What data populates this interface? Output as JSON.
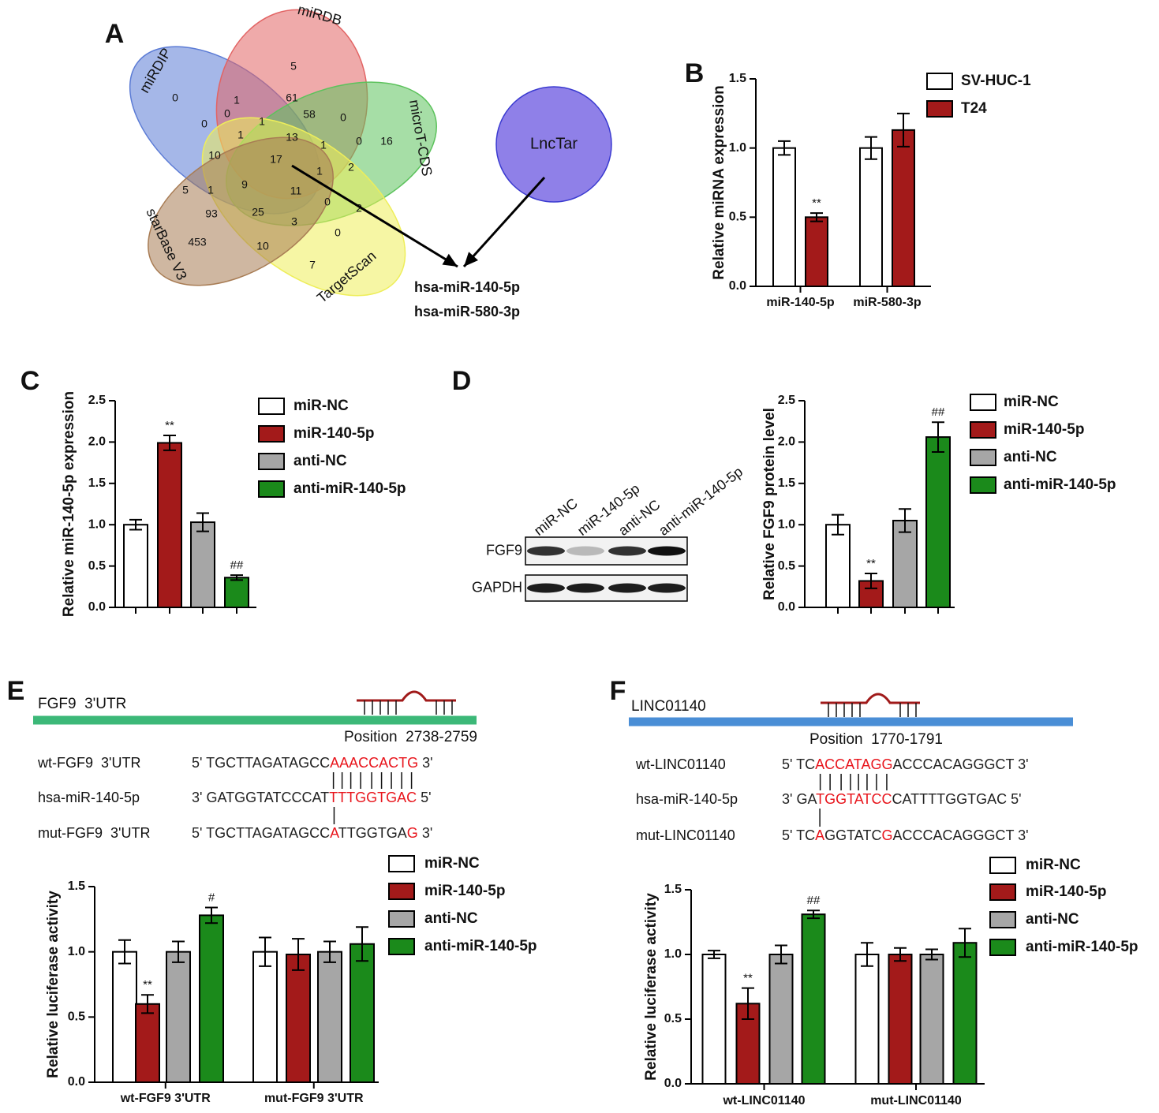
{
  "venn": {
    "panel": "A",
    "sets": [
      {
        "name": "miRDIP",
        "color": "#5b7bd5"
      },
      {
        "name": "miRDB",
        "color": "#e26464"
      },
      {
        "name": "microT-CDS",
        "color": "#5cc25c"
      },
      {
        "name": "starBase V3",
        "color": "#eeee5a"
      },
      {
        "name": "TargetScan",
        "color": "#a87c54"
      }
    ],
    "regions": [
      5,
      61,
      1,
      58,
      0,
      0,
      1,
      13,
      16,
      0,
      0,
      1,
      0,
      1,
      17,
      1,
      10,
      2,
      5,
      9,
      11,
      1,
      2,
      0,
      93,
      25,
      3,
      0,
      453,
      10,
      7
    ]
  },
  "lnctar": {
    "name": "LncTar",
    "color": "#8f80e8"
  },
  "candidates": [
    "hsa-miR-140-5p",
    "hsa-miR-580-3p"
  ],
  "blot": {
    "lanes": [
      "miR-NC",
      "miR-140-5p",
      "anti-NC",
      "anti-miR-140-5p"
    ],
    "rows": [
      "FGF9",
      "GAPDH"
    ]
  },
  "sequences": [
    {
      "panel": "E",
      "gene": "FGF9  3'UTR",
      "position": "Position  2738-2759",
      "color": "#3cb878",
      "rows": [
        {
          "label": "wt-FGF9  3'UTR",
          "segments": [
            {
              "text": "5' TGCTTAGATAGCC",
              "color": "#222222"
            },
            {
              "text": "AAACCACTG",
              "color": "#e8141b"
            },
            {
              "text": " 3'",
              "color": "#222222"
            }
          ]
        },
        {
          "label": "hsa-miR-140-5p",
          "segments": [
            {
              "text": "3' GATGGTATCCCAT",
              "color": "#222222"
            },
            {
              "text": "TTTGGTGAC",
              "color": "#e8141b"
            },
            {
              "text": " 5'",
              "color": "#222222"
            }
          ]
        },
        {
          "label": "mut-FGF9  3'UTR",
          "segments": [
            {
              "text": "5' TGCTTAGATAGCC",
              "color": "#222222"
            },
            {
              "text": "A",
              "color": "#e8141b"
            },
            {
              "text": "TTGGTGA",
              "color": "#222222"
            },
            {
              "text": "G",
              "color": "#e8141b"
            },
            {
              "text": " 3'",
              "color": "#222222"
            }
          ]
        }
      ]
    },
    {
      "panel": "F",
      "gene": "LINC01140",
      "position": "Position  1770-1791",
      "color": "#4a8ed6",
      "rows": [
        {
          "label": "wt-LINC01140",
          "segments": [
            {
              "text": "5' TC",
              "color": "#222222"
            },
            {
              "text": "ACCATAGG",
              "color": "#e8141b"
            },
            {
              "text": "ACCCACAGGGCT 3'",
              "color": "#222222"
            }
          ]
        },
        {
          "label": "hsa-miR-140-5p",
          "segments": [
            {
              "text": "3' GA",
              "color": "#222222"
            },
            {
              "text": "TGGTATCC",
              "color": "#e8141b"
            },
            {
              "text": "CATTTTGGTGAC 5'",
              "color": "#222222"
            }
          ]
        },
        {
          "label": "mut-LINC01140",
          "segments": [
            {
              "text": "5' TC",
              "color": "#222222"
            },
            {
              "text": "A",
              "color": "#e8141b"
            },
            {
              "text": "GGTATC",
              "color": "#222222"
            },
            {
              "text": "G",
              "color": "#e8141b"
            },
            {
              "text": "ACCCACAGGGCT 3'",
              "color": "#222222"
            }
          ]
        }
      ]
    }
  ],
  "chart_data": [
    {
      "type": "bar",
      "panel": "B",
      "ylabel": "Relative miRNA expression",
      "categories": [
        "miR-140-5p",
        "miR-580-3p"
      ],
      "series": [
        {
          "name": "SV-HUC-1",
          "color": "#ffffff",
          "values": [
            1.0,
            1.0
          ],
          "errors": [
            0.05,
            0.08
          ]
        },
        {
          "name": "T24",
          "color": "#a31a1a",
          "values": [
            0.5,
            1.13
          ],
          "errors": [
            0.03,
            0.12
          ],
          "labels": [
            "**",
            null
          ]
        }
      ],
      "ylim": [
        0,
        1.5
      ],
      "yticks": [
        {
          "value": 0,
          "label": "0.0"
        },
        0.5,
        {
          "value": 1,
          "label": "1.0"
        },
        1.5
      ]
    },
    {
      "type": "bar",
      "panel": "C",
      "ylabel": "Relative miR-140-5p expression",
      "categories": [
        null
      ],
      "series": [
        {
          "name": "miR-NC",
          "color": "#ffffff",
          "values": [
            1.0
          ],
          "errors": [
            0.06
          ]
        },
        {
          "name": "miR-140-5p",
          "color": "#a31a1a",
          "values": [
            1.99
          ],
          "errors": [
            0.09
          ],
          "labels": [
            "**"
          ]
        },
        {
          "name": "anti-NC",
          "color": "#a6a6a6",
          "values": [
            1.03
          ],
          "errors": [
            0.11
          ]
        },
        {
          "name": "anti-miR-140-5p",
          "color": "#1b8a1b",
          "values": [
            0.36
          ],
          "errors": [
            0.03
          ],
          "labels": [
            "##"
          ]
        }
      ],
      "ylim": [
        0,
        2.5
      ],
      "yticks": [
        {
          "value": 0,
          "label": "0.0"
        },
        0.5,
        {
          "value": 1,
          "label": "1.0"
        },
        1.5,
        {
          "value": 2,
          "label": "2.0"
        },
        2.5
      ]
    },
    {
      "type": "bar",
      "panel": "D",
      "ylabel": "Relative FGF9 protein level",
      "categories": [
        null
      ],
      "series": [
        {
          "name": "miR-NC",
          "color": "#ffffff",
          "values": [
            1.0
          ],
          "errors": [
            0.12
          ]
        },
        {
          "name": "miR-140-5p",
          "color": "#a31a1a",
          "values": [
            0.32
          ],
          "errors": [
            0.09
          ],
          "labels": [
            "**"
          ]
        },
        {
          "name": "anti-NC",
          "color": "#a6a6a6",
          "values": [
            1.05
          ],
          "errors": [
            0.14
          ]
        },
        {
          "name": "anti-miR-140-5p",
          "color": "#1b8a1b",
          "values": [
            2.06
          ],
          "errors": [
            0.18
          ],
          "labels": [
            "##"
          ]
        }
      ],
      "ylim": [
        0,
        2.5
      ],
      "yticks": [
        {
          "value": 0,
          "label": "0.0"
        },
        0.5,
        {
          "value": 1,
          "label": "1.0"
        },
        1.5,
        {
          "value": 2,
          "label": "2.0"
        },
        2.5
      ]
    },
    {
      "type": "bar",
      "ylabel": "Relative luciferase activity",
      "categories": [
        "wt-FGF9 3'UTR",
        "mut-FGF9 3'UTR"
      ],
      "series": [
        {
          "name": "miR-NC",
          "color": "#ffffff",
          "values": [
            1.0,
            1.0
          ],
          "errors": [
            0.09,
            0.11
          ]
        },
        {
          "name": "miR-140-5p",
          "color": "#a31a1a",
          "values": [
            0.6,
            0.98
          ],
          "errors": [
            0.07,
            0.12
          ],
          "labels": [
            "**",
            null
          ]
        },
        {
          "name": "anti-NC",
          "color": "#a6a6a6",
          "values": [
            1.0,
            1.0
          ],
          "errors": [
            0.08,
            0.08
          ]
        },
        {
          "name": "anti-miR-140-5p",
          "color": "#1b8a1b",
          "values": [
            1.28,
            1.06
          ],
          "errors": [
            0.06,
            0.13
          ],
          "labels": [
            "#",
            null
          ]
        }
      ],
      "ylim": [
        0,
        1.5
      ],
      "yticks": [
        {
          "value": 0,
          "label": "0.0"
        },
        0.5,
        {
          "value": 1,
          "label": "1.0"
        },
        1.5
      ]
    },
    {
      "type": "bar",
      "ylabel": "Relative luciferase activity",
      "categories": [
        "wt-LINC01140",
        "mut-LINC01140"
      ],
      "series": [
        {
          "name": "miR-NC",
          "color": "#ffffff",
          "values": [
            1.0,
            1.0
          ],
          "errors": [
            0.03,
            0.09
          ]
        },
        {
          "name": "miR-140-5p",
          "color": "#a31a1a",
          "values": [
            0.62,
            1.0
          ],
          "errors": [
            0.12,
            0.05
          ],
          "labels": [
            "**",
            null
          ]
        },
        {
          "name": "anti-NC",
          "color": "#a6a6a6",
          "values": [
            1.0,
            1.0
          ],
          "errors": [
            0.07,
            0.04
          ]
        },
        {
          "name": "anti-miR-140-5p",
          "color": "#1b8a1b",
          "values": [
            1.31,
            1.09
          ],
          "errors": [
            0.03,
            0.11
          ],
          "labels": [
            "##",
            null
          ]
        }
      ],
      "ylim": [
        0,
        1.5
      ],
      "yticks": [
        {
          "value": 0,
          "label": "0.0"
        },
        0.5,
        {
          "value": 1,
          "label": "1.0"
        },
        1.5
      ]
    }
  ]
}
